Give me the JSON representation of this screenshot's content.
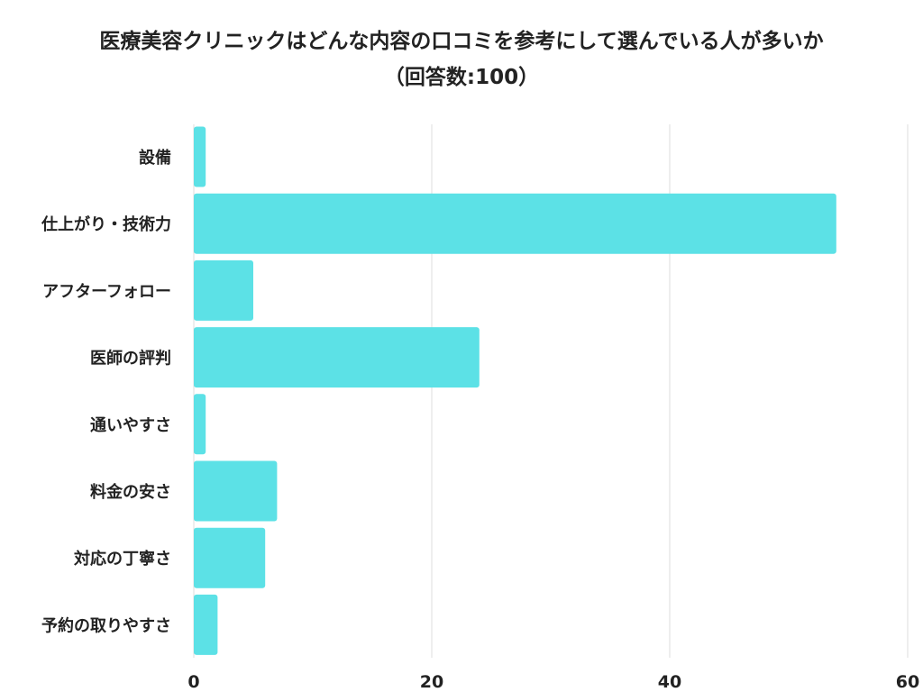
{
  "chart_data": {
    "type": "bar",
    "orientation": "horizontal",
    "title": "医療美容クリニックはどんな内容の口コミを参考にして選んでいる人が多いか\n（回答数:100）",
    "categories": [
      "設備",
      "仕上がり・技術力",
      "アフターフォロー",
      "医師の評判",
      "通いやすさ",
      "料金の安さ",
      "対応の丁寧さ",
      "予約の取りやすさ"
    ],
    "values": [
      1,
      54,
      5,
      24,
      1,
      7,
      6,
      2
    ],
    "xlim": [
      0,
      60
    ],
    "xticks": [
      0,
      20,
      40,
      60
    ],
    "grid": true,
    "legend": "none",
    "colors": {
      "bar": "#5ce1e6",
      "grid": "#dddddd",
      "text": "#222222"
    }
  }
}
